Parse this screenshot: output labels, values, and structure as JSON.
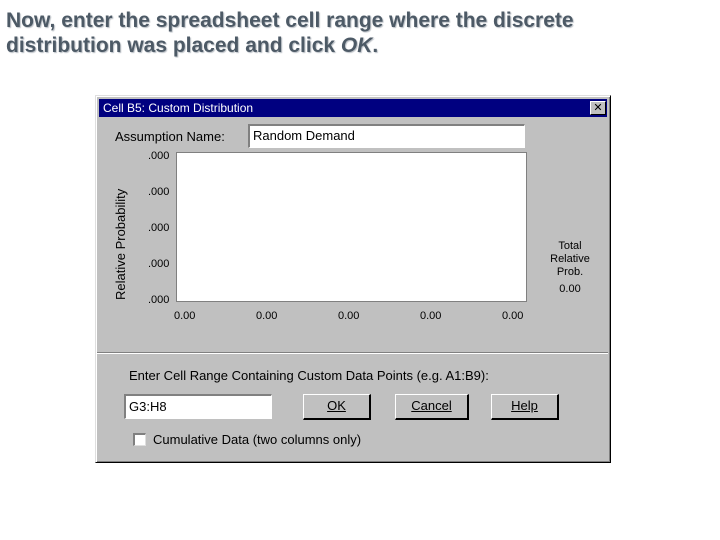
{
  "slide": {
    "title_line1": "Now, enter the spreadsheet cell range where the discrete",
    "title_line2_pre": "distribution was placed and click ",
    "title_line2_em": "OK",
    "title_line2_post": "."
  },
  "dialog": {
    "title": "Cell B5:  Custom  Distribution",
    "close_glyph": "✕",
    "assumption_label": "Assumption Name:",
    "assumption_value": "Random Demand",
    "chart": {
      "ylabel": "Relative  Probability",
      "yticks": [
        ".000",
        ".000",
        ".000",
        ".000",
        ".000"
      ],
      "xticks": [
        "0.00",
        "0.00",
        "0.00",
        "0.00",
        "0.00"
      ],
      "side_line1": "Total",
      "side_line2": "Relative",
      "side_line3": "Prob.",
      "side_value": "0.00"
    },
    "range_label": "Enter Cell Range Containing Custom Data Points  (e.g. A1:B9):",
    "range_value": "G3:H8",
    "ok_label": "OK",
    "cancel_label": "Cancel",
    "help_label": "Help",
    "cumulative_label": "Cumulative Data (two columns only)",
    "cumulative_checked": false
  }
}
